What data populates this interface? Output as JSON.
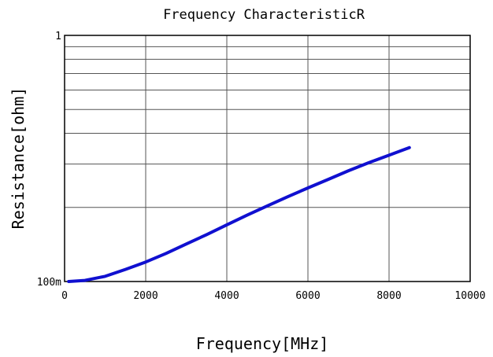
{
  "chart_data": {
    "type": "line",
    "title": "Frequency  CharacteristicR",
    "xlabel": "Frequency[MHz]",
    "ylabel": "Resistance[ohm]",
    "xlim": [
      0,
      10000
    ],
    "ylim": [
      0.1,
      1
    ],
    "yscale": "log",
    "grid": true,
    "x_ticks": [
      0,
      2000,
      4000,
      6000,
      8000,
      10000
    ],
    "x_tick_labels": [
      "0",
      "2000",
      "4000",
      "6000",
      "8000",
      "10000"
    ],
    "y_tick_values": [
      0.1,
      1
    ],
    "y_tick_labels": [
      "100m",
      "1"
    ],
    "series": [
      {
        "color": "#1010d0",
        "x": [
          100,
          500,
          1000,
          1500,
          2000,
          2500,
          3000,
          3500,
          4000,
          4500,
          5000,
          5500,
          6000,
          6500,
          7000,
          7500,
          8000,
          8500
        ],
        "y": [
          0.1,
          0.101,
          0.105,
          0.112,
          0.12,
          0.13,
          0.142,
          0.155,
          0.17,
          0.186,
          0.203,
          0.221,
          0.24,
          0.26,
          0.282,
          0.304,
          0.326,
          0.35
        ]
      }
    ]
  }
}
